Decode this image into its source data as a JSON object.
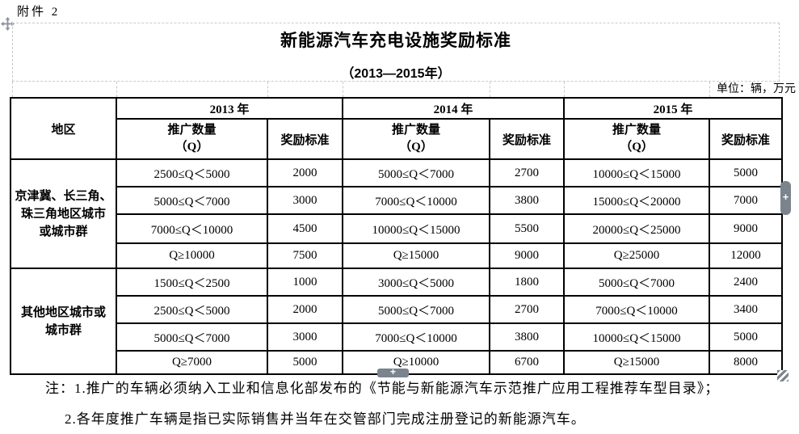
{
  "page": {
    "attachment_label": "附件 2",
    "unit_label": "单位：辆，万元"
  },
  "title": {
    "main": "新能源汽车充电设施奖励标准",
    "sub": "（2013—2015年）"
  },
  "table": {
    "corner_header": "地区",
    "years": [
      "2013 年",
      "2014 年",
      "2015 年"
    ],
    "sub_headers": {
      "qty": "推广数量\n（Q）",
      "reward": "奖励标准"
    },
    "regions": [
      {
        "name": "京津冀、长三角、\n珠三角地区城市\n或城市群",
        "rows": [
          [
            "2500≤Q＜5000",
            "2000",
            "5000≤Q＜7000",
            "2700",
            "10000≤Q＜15000",
            "5000"
          ],
          [
            "5000≤Q＜7000",
            "3000",
            "7000≤Q＜10000",
            "3800",
            "15000≤Q＜20000",
            "7000"
          ],
          [
            "7000≤Q＜10000",
            "4500",
            "10000≤Q＜15000",
            "5500",
            "20000≤Q＜25000",
            "9000"
          ],
          [
            "Q≥10000",
            "7500",
            "Q≥15000",
            "9000",
            "Q≥25000",
            "12000"
          ]
        ]
      },
      {
        "name": "其他地区城市或\n城市群",
        "rows": [
          [
            "1500≤Q＜2500",
            "1000",
            "3000≤Q＜5000",
            "1800",
            "5000≤Q＜7000",
            "2400"
          ],
          [
            "2500≤Q＜5000",
            "2000",
            "5000≤Q＜7000",
            "2700",
            "7000≤Q＜10000",
            "3400"
          ],
          [
            "5000≤Q＜7000",
            "3000",
            "7000≤Q＜10000",
            "3800",
            "10000≤Q＜15000",
            "5000"
          ],
          [
            "Q≥7000",
            "5000",
            "Q≥10000",
            "6700",
            "Q≥15000",
            "8000"
          ]
        ]
      }
    ]
  },
  "notes": {
    "prefix": "注：",
    "items": [
      "1.推广的车辆必须纳入工业和信息化部发布的《节能与新能源汽车示范推广应用工程推荐车型目录》；",
      "2.各年度推广车辆是指已实际销售并当年在交管部门完成注册登记的新能源汽车。"
    ]
  },
  "handles": {
    "right_label": "+",
    "bottom_label": "+"
  },
  "icons": {
    "move_handle": "four-direction-move-cross",
    "corner_handle": "diagonal-stripe-resize-grip"
  },
  "colors": {
    "table_border": "#000000",
    "gridline_dashed": "#c9c9c9",
    "handle_gray": "#7b838d",
    "text": "#000000",
    "background": "#ffffff"
  }
}
